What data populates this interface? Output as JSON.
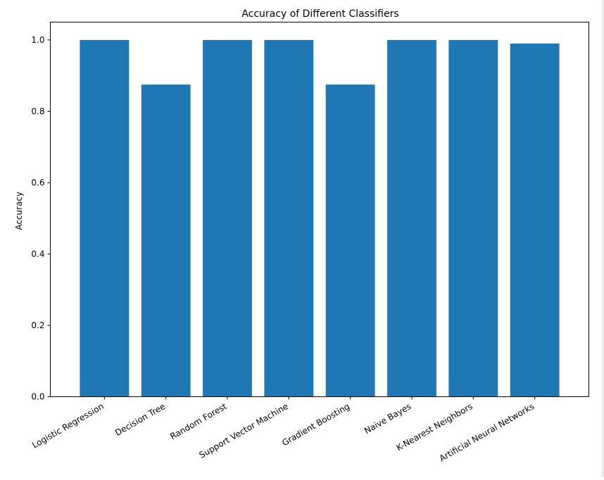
{
  "chart_data": {
    "type": "bar",
    "title": "Accuracy of Different Classifiers",
    "xlabel": "",
    "ylabel": "Accuracy",
    "categories": [
      "Logistic Regression",
      "Decision Tree",
      "Random Forest",
      "Support Vector Machine",
      "Gradient Boosting",
      "Naive Bayes",
      "K-Nearest Neighbors",
      "Artificial Neural Networks"
    ],
    "values": [
      1.0,
      0.875,
      1.0,
      1.0,
      0.875,
      1.0,
      1.0,
      0.99
    ],
    "ylim": [
      0,
      1.05
    ],
    "yticks": [
      "0.0",
      "0.2",
      "0.4",
      "0.6",
      "0.8",
      "1.0"
    ],
    "grid": false,
    "bar_color": "#1f77b4"
  }
}
